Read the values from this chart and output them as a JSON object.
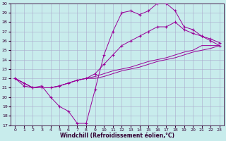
{
  "xlabel": "Windchill (Refroidissement éolien,°C)",
  "bg_color": "#c8ecec",
  "grid_color": "#aaaacc",
  "line_color": "#990099",
  "spine_color": "#330033",
  "xlim": [
    -0.5,
    23.5
  ],
  "ylim": [
    17,
    30
  ],
  "xticks": [
    0,
    1,
    2,
    3,
    4,
    5,
    6,
    7,
    8,
    9,
    10,
    11,
    12,
    13,
    14,
    15,
    16,
    17,
    18,
    19,
    20,
    21,
    22,
    23
  ],
  "yticks": [
    17,
    18,
    19,
    20,
    21,
    22,
    23,
    24,
    25,
    26,
    27,
    28,
    29,
    30
  ],
  "s1_x": [
    0,
    1,
    2,
    3,
    4,
    5,
    6,
    7,
    8,
    9,
    10,
    11,
    12,
    13,
    14,
    15,
    16,
    17,
    18,
    19,
    20,
    21,
    22,
    23
  ],
  "s1_y": [
    22,
    21.2,
    21,
    21.2,
    20,
    19,
    18.5,
    17.2,
    17.2,
    20.8,
    24.5,
    27,
    29,
    29.2,
    28.8,
    29.2,
    30,
    30,
    29.2,
    27.5,
    27.2,
    26.5,
    26,
    25.5
  ],
  "s2_x": [
    0,
    1,
    2,
    3,
    4,
    5,
    6,
    7,
    8,
    9,
    10,
    11,
    12,
    13,
    14,
    15,
    16,
    17,
    18,
    19,
    20,
    21,
    22,
    23
  ],
  "s2_y": [
    22,
    21.5,
    21,
    21,
    21,
    21.2,
    21.5,
    21.8,
    22,
    22,
    22.2,
    22.5,
    22.8,
    23,
    23.2,
    23.5,
    23.8,
    24,
    24.2,
    24.5,
    24.8,
    25,
    25.2,
    25.5
  ],
  "s3_x": [
    0,
    1,
    2,
    3,
    4,
    5,
    6,
    7,
    8,
    9,
    10,
    11,
    12,
    13,
    14,
    15,
    16,
    17,
    18,
    19,
    20,
    21,
    22,
    23
  ],
  "s3_y": [
    22,
    21.5,
    21,
    21,
    21,
    21.2,
    21.5,
    21.8,
    22,
    22.2,
    22.5,
    22.8,
    23,
    23.2,
    23.5,
    23.8,
    24,
    24.2,
    24.5,
    24.8,
    25,
    25.5,
    25.5,
    25.5
  ],
  "s4_x": [
    0,
    1,
    2,
    3,
    4,
    5,
    6,
    7,
    8,
    9,
    10,
    11,
    12,
    13,
    14,
    15,
    16,
    17,
    18,
    19,
    20,
    21,
    22,
    23
  ],
  "s4_y": [
    22,
    21.5,
    21,
    21,
    21,
    21.2,
    21.5,
    21.8,
    22,
    22.5,
    23.5,
    24.5,
    25.5,
    26,
    26.5,
    27,
    27.5,
    27.5,
    28,
    27.2,
    26.8,
    26.5,
    26.2,
    25.8
  ]
}
